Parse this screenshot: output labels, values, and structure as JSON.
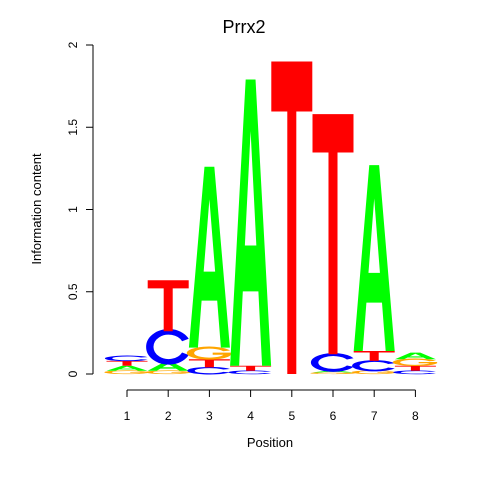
{
  "chart_data": {
    "type": "sequence-logo",
    "title": "Prrx2",
    "xlabel": "Position",
    "ylabel": "Information content",
    "ylim": [
      0,
      2
    ],
    "y_ticks": [
      0,
      0.5,
      1,
      1.5,
      2
    ],
    "y_tick_labels": [
      "0",
      "0.5",
      "1",
      "1.5",
      "2"
    ],
    "x_ticks": [
      1,
      2,
      3,
      4,
      5,
      6,
      7,
      8
    ],
    "x_tick_labels": [
      "1",
      "2",
      "3",
      "4",
      "5",
      "6",
      "7",
      "8"
    ],
    "colors": {
      "A": "#00ff00",
      "C": "#0000ff",
      "G": "#ffa500",
      "T": "#ff0000"
    },
    "positions": [
      {
        "pos": 1,
        "stack": [
          {
            "letter": "G",
            "height": 0.02
          },
          {
            "letter": "A",
            "height": 0.03
          },
          {
            "letter": "T",
            "height": 0.03
          },
          {
            "letter": "C",
            "height": 0.03
          }
        ]
      },
      {
        "pos": 2,
        "stack": [
          {
            "letter": "G",
            "height": 0.02
          },
          {
            "letter": "A",
            "height": 0.05
          },
          {
            "letter": "C",
            "height": 0.19
          },
          {
            "letter": "T",
            "height": 0.31
          }
        ]
      },
      {
        "pos": 3,
        "stack": [
          {
            "letter": "C",
            "height": 0.04
          },
          {
            "letter": "T",
            "height": 0.05
          },
          {
            "letter": "G",
            "height": 0.07
          },
          {
            "letter": "A",
            "height": 1.1
          }
        ]
      },
      {
        "pos": 4,
        "stack": [
          {
            "letter": "C",
            "height": 0.02
          },
          {
            "letter": "T",
            "height": 0.03
          },
          {
            "letter": "A",
            "height": 1.74
          }
        ]
      },
      {
        "pos": 5,
        "stack": [
          {
            "letter": "T",
            "height": 1.9
          }
        ]
      },
      {
        "pos": 6,
        "stack": [
          {
            "letter": "G",
            "height": 0.01
          },
          {
            "letter": "A",
            "height": 0.01
          },
          {
            "letter": "C",
            "height": 0.1
          },
          {
            "letter": "T",
            "height": 1.46
          }
        ]
      },
      {
        "pos": 7,
        "stack": [
          {
            "letter": "G",
            "height": 0.02
          },
          {
            "letter": "C",
            "height": 0.06
          },
          {
            "letter": "T",
            "height": 0.06
          },
          {
            "letter": "A",
            "height": 1.13
          }
        ]
      },
      {
        "pos": 8,
        "stack": [
          {
            "letter": "C",
            "height": 0.02
          },
          {
            "letter": "T",
            "height": 0.03
          },
          {
            "letter": "G",
            "height": 0.04
          },
          {
            "letter": "A",
            "height": 0.04
          }
        ]
      }
    ]
  }
}
